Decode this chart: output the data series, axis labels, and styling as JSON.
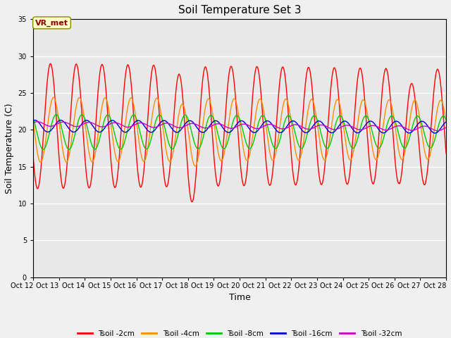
{
  "title": "Soil Temperature Set 3",
  "xlabel": "Time",
  "ylabel": "Soil Temperature (C)",
  "ylim": [
    0,
    35
  ],
  "yticks": [
    0,
    5,
    10,
    15,
    20,
    25,
    30,
    35
  ],
  "background_color": "#f0f0f0",
  "plot_bg_color": "#e8e8e8",
  "grid_color": "#ffffff",
  "annotation_text": "VR_met",
  "annotation_bg": "#ffffcc",
  "annotation_border": "#888800",
  "lines": [
    {
      "label": "Tsoil -2cm",
      "color": "#ff0000",
      "lw": 1.0
    },
    {
      "label": "Tsoil -4cm",
      "color": "#ff8c00",
      "lw": 1.0
    },
    {
      "label": "Tsoil -8cm",
      "color": "#00cc00",
      "lw": 1.0
    },
    {
      "label": "Tsoil -16cm",
      "color": "#0000dd",
      "lw": 1.0
    },
    {
      "label": "Tsoil -32cm",
      "color": "#cc00cc",
      "lw": 1.0
    }
  ],
  "n_days": 16,
  "points_per_day": 288,
  "start_day": 12
}
